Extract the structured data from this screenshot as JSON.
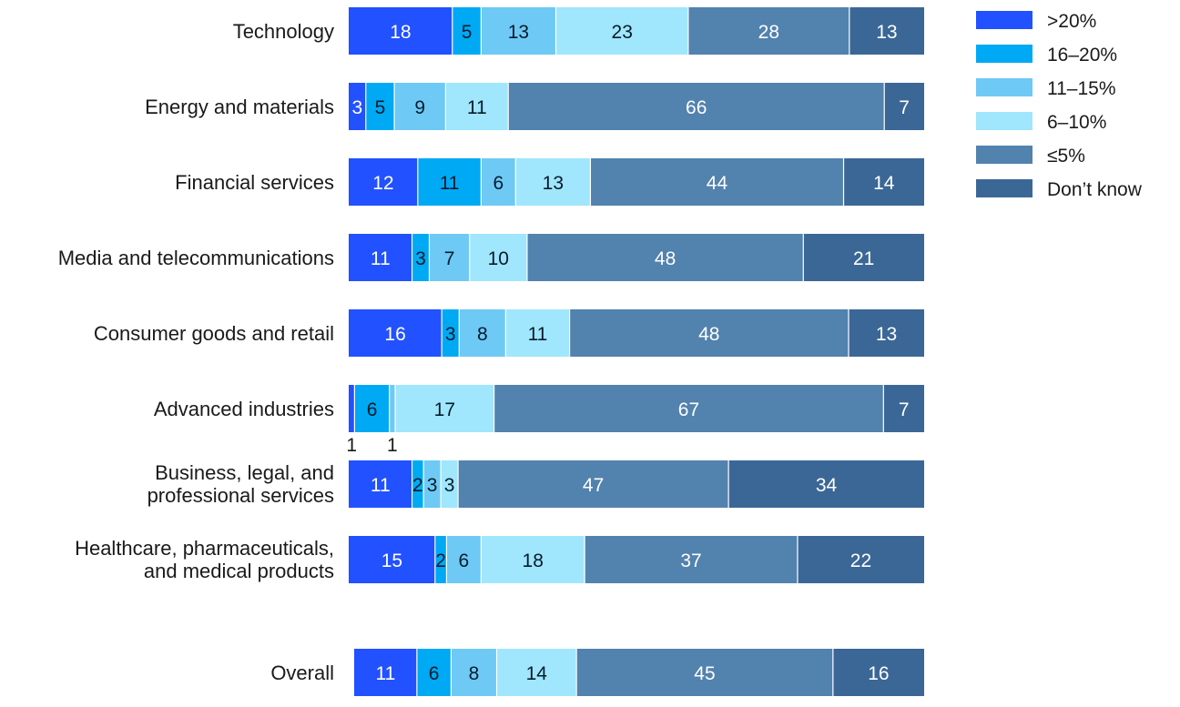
{
  "chart_data": {
    "type": "bar",
    "orientation": "horizontal",
    "stacked": true,
    "legend_position": "top-right",
    "grid": false,
    "xlim": [
      0,
      100
    ],
    "categories": [
      [
        "Technology"
      ],
      [
        "Energy and materials"
      ],
      [
        "Financial services"
      ],
      [
        "Media and telecommunications"
      ],
      [
        "Consumer goods and retail"
      ],
      [
        "Advanced industries"
      ],
      [
        "Business, legal, and",
        "professional services"
      ],
      [
        "Healthcare, pharmaceuticals,",
        "and medical products"
      ],
      [
        "Overall"
      ]
    ],
    "series": [
      {
        "name": ">20%",
        "color": "#2251ff",
        "label_color": "#ffffff",
        "values": [
          18,
          3,
          12,
          11,
          16,
          1,
          11,
          15,
          11
        ]
      },
      {
        "name": "16–20%",
        "color": "#00a9f4",
        "label_color": "#051c2c",
        "values": [
          5,
          5,
          11,
          3,
          3,
          6,
          2,
          2,
          6
        ]
      },
      {
        "name": "11–15%",
        "color": "#6ec9f5",
        "label_color": "#051c2c",
        "values": [
          13,
          9,
          6,
          7,
          8,
          1,
          3,
          6,
          8
        ]
      },
      {
        "name": "6–10%",
        "color": "#a0e6fd",
        "label_color": "#051c2c",
        "values": [
          23,
          11,
          13,
          10,
          11,
          17,
          3,
          18,
          14
        ]
      },
      {
        "name": "≤5%",
        "color": "#5282ae",
        "label_color": "#ffffff",
        "values": [
          28,
          66,
          44,
          48,
          48,
          67,
          47,
          37,
          45
        ]
      },
      {
        "name": "Don’t know",
        "color": "#3b6796",
        "label_color": "#ffffff",
        "values": [
          13,
          7,
          14,
          21,
          13,
          7,
          34,
          22,
          16
        ]
      }
    ]
  }
}
